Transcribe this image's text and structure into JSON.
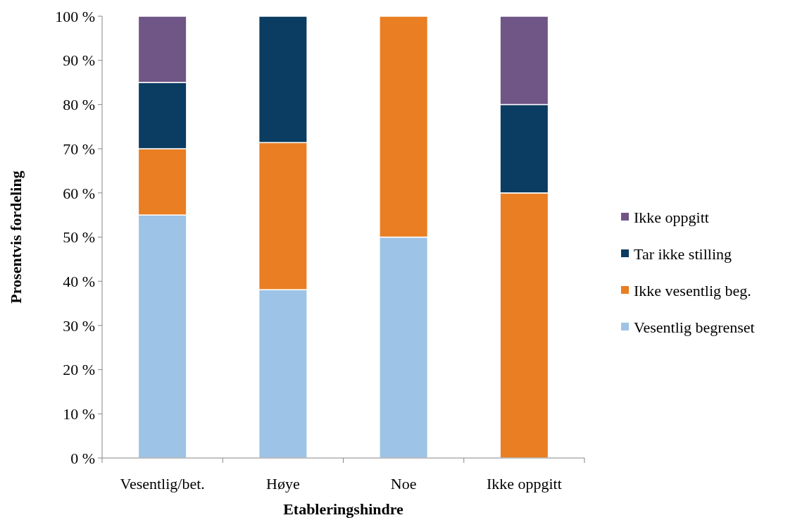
{
  "chart_data": {
    "type": "bar",
    "stacked": true,
    "xlabel": "Etableringshindre",
    "ylabel": "Prosentvis fordeling",
    "categories": [
      "Vesentlig/bet.",
      "Høye",
      "Noe",
      "Ikke oppgitt"
    ],
    "series": [
      {
        "name": "Vesentlig begrenset",
        "color": "#9dc3e6",
        "values": [
          55,
          38.1,
          50,
          0
        ]
      },
      {
        "name": "Ikke vesentlig beg.",
        "color": "#e97e23",
        "values": [
          15,
          33.3,
          50,
          60
        ]
      },
      {
        "name": "Tar ikke stilling",
        "color": "#0b3c61",
        "values": [
          15,
          28.6,
          0,
          20
        ]
      },
      {
        "name": "Ikke oppgitt",
        "color": "#6f5686",
        "values": [
          15,
          0,
          0,
          20
        ]
      }
    ],
    "ylim": [
      0,
      100
    ],
    "yticks": [
      {
        "value": 0,
        "label": "0 %"
      },
      {
        "value": 10,
        "label": "10 %"
      },
      {
        "value": 20,
        "label": "20 %"
      },
      {
        "value": 30,
        "label": "30 %"
      },
      {
        "value": 40,
        "label": "40 %"
      },
      {
        "value": 50,
        "label": "50 %"
      },
      {
        "value": 60,
        "label": "60 %"
      },
      {
        "value": 70,
        "label": "70 %"
      },
      {
        "value": 80,
        "label": "80 %"
      },
      {
        "value": 90,
        "label": "90 %"
      },
      {
        "value": 100,
        "label": "100 %"
      }
    ],
    "grid": false,
    "legend": "right"
  }
}
